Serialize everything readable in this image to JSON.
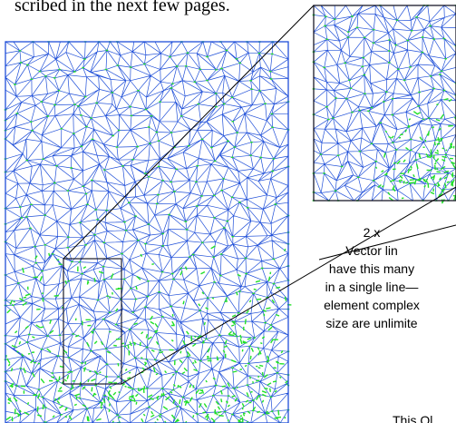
{
  "document": {
    "intro_text": "scribed in the next few pages.",
    "caption_lines": [
      "2 x",
      "Vector lin",
      "have this many",
      "in a single line—",
      "element complex",
      "size are unlimite"
    ],
    "footer_text": "This Ol"
  },
  "colors": {
    "mesh_line": "#1f4fd8",
    "node": "#22e02a",
    "frame": "#1a1a2a",
    "callout": "#000000"
  }
}
